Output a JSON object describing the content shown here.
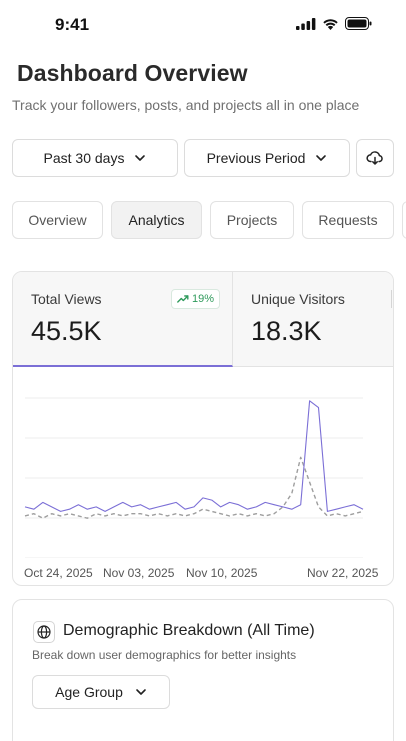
{
  "status_bar": {
    "time": "9:41"
  },
  "header": {
    "title": "Dashboard Overview",
    "subtitle": "Track your followers, posts, and projects all in one place"
  },
  "filters": {
    "period_label": "Past 30 days",
    "compare_label": "Previous Period"
  },
  "tabs": [
    {
      "label": "Overview"
    },
    {
      "label": "Analytics"
    },
    {
      "label": "Projects"
    },
    {
      "label": "Requests"
    }
  ],
  "active_tab": "Analytics",
  "metrics": {
    "total_views": {
      "label": "Total Views",
      "value": "45.5K",
      "trend": "19%"
    },
    "unique_visitors": {
      "label": "Unique Visitors",
      "value": "18.3K"
    }
  },
  "chart_data": {
    "type": "line",
    "x_tick_labels": [
      "Oct 24, 2025",
      "Nov 03, 2025",
      "Nov 10, 2025",
      "Nov 22, 2025"
    ],
    "series": [
      {
        "style": "solid",
        "color": "#7b6fd6",
        "values": [
          1.2,
          1.1,
          1.4,
          1.2,
          1.0,
          1.1,
          1.3,
          1.1,
          1.2,
          1.0,
          1.2,
          1.4,
          1.2,
          1.3,
          1.1,
          1.2,
          1.3,
          1.4,
          1.1,
          1.2,
          1.6,
          1.5,
          1.2,
          1.4,
          1.3,
          1.1,
          1.2,
          1.4,
          1.3,
          1.2,
          1.1,
          1.3,
          5.9,
          5.6,
          1.0,
          1.1,
          1.2,
          1.3,
          1.1
        ]
      },
      {
        "style": "dashed",
        "color": "#9e9e9e",
        "values": [
          0.8,
          0.9,
          0.7,
          0.9,
          0.8,
          0.9,
          0.8,
          0.7,
          0.9,
          0.8,
          0.9,
          0.8,
          0.9,
          0.9,
          0.8,
          0.9,
          0.8,
          0.9,
          0.8,
          0.9,
          1.1,
          1.0,
          0.9,
          0.8,
          0.9,
          0.8,
          0.9,
          0.8,
          0.9,
          1.2,
          1.8,
          3.4,
          2.3,
          1.2,
          0.8,
          0.9,
          0.8,
          0.9,
          1.0
        ]
      }
    ],
    "ylim": [
      0,
      7
    ],
    "grid": true
  },
  "demographics": {
    "title": "Demographic Breakdown (All Time)",
    "subtitle": "Break down user demographics for better insights",
    "group_label": "Age Group"
  },
  "colors": {
    "accent": "#7b6fd6",
    "trend_positive": "#2e9a5b"
  }
}
